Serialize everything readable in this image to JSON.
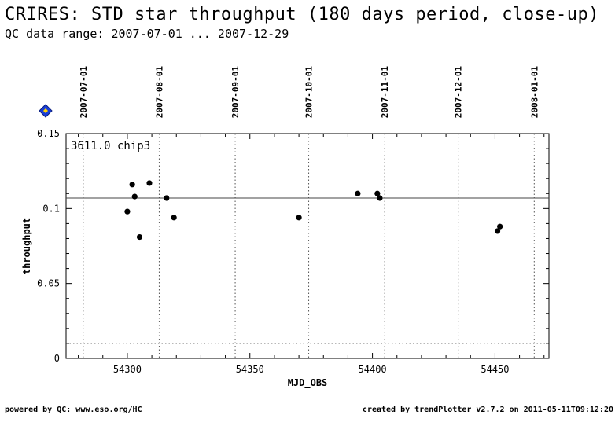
{
  "header": {
    "title": "CRIRES: STD star throughput (180 days period, close-up)",
    "subtitle": "QC data range: 2007-07-01 ... 2007-12-29"
  },
  "footer": {
    "left": "powered by QC: www.eso.org/HC",
    "right": "created by trendPlotter v2.7.2 on 2011-05-11T09:12:20"
  },
  "marker_icon": "diamond-icon",
  "colors": {
    "marker_fill": "#1a3fd6",
    "marker_center": "#ffd400"
  },
  "chart_data": {
    "type": "scatter",
    "title": "",
    "xlabel": "MJD_OBS",
    "ylabel": "throughput",
    "panel_label": "3611.0_chip3",
    "xlim": [
      54275,
      54472
    ],
    "ylim": [
      0,
      0.15
    ],
    "x_ticks": [
      54300,
      54350,
      54400,
      54450
    ],
    "y_ticks": [
      0,
      0.05,
      0.1,
      0.15
    ],
    "y_tick_labels": [
      "0",
      "0.05",
      "0.1",
      "0.15"
    ],
    "date_ticks": [
      {
        "label": "2007-07-01",
        "mjd": 54282
      },
      {
        "label": "2007-08-01",
        "mjd": 54313
      },
      {
        "label": "2007-09-01",
        "mjd": 54344
      },
      {
        "label": "2007-10-01",
        "mjd": 54374
      },
      {
        "label": "2007-11-01",
        "mjd": 54405
      },
      {
        "label": "2007-12-01",
        "mjd": 54435
      },
      {
        "label": "2008-01-01",
        "mjd": 54466
      }
    ],
    "reference_line": 0.107,
    "threshold_line": 0.01,
    "points": [
      {
        "x": 54300,
        "y": 0.098
      },
      {
        "x": 54302,
        "y": 0.116
      },
      {
        "x": 54303,
        "y": 0.108
      },
      {
        "x": 54305,
        "y": 0.081
      },
      {
        "x": 54309,
        "y": 0.117
      },
      {
        "x": 54316,
        "y": 0.107
      },
      {
        "x": 54319,
        "y": 0.094
      },
      {
        "x": 54370,
        "y": 0.094
      },
      {
        "x": 54394,
        "y": 0.11
      },
      {
        "x": 54402,
        "y": 0.11
      },
      {
        "x": 54403,
        "y": 0.107
      },
      {
        "x": 54451,
        "y": 0.085
      },
      {
        "x": 54452,
        "y": 0.088
      }
    ]
  }
}
